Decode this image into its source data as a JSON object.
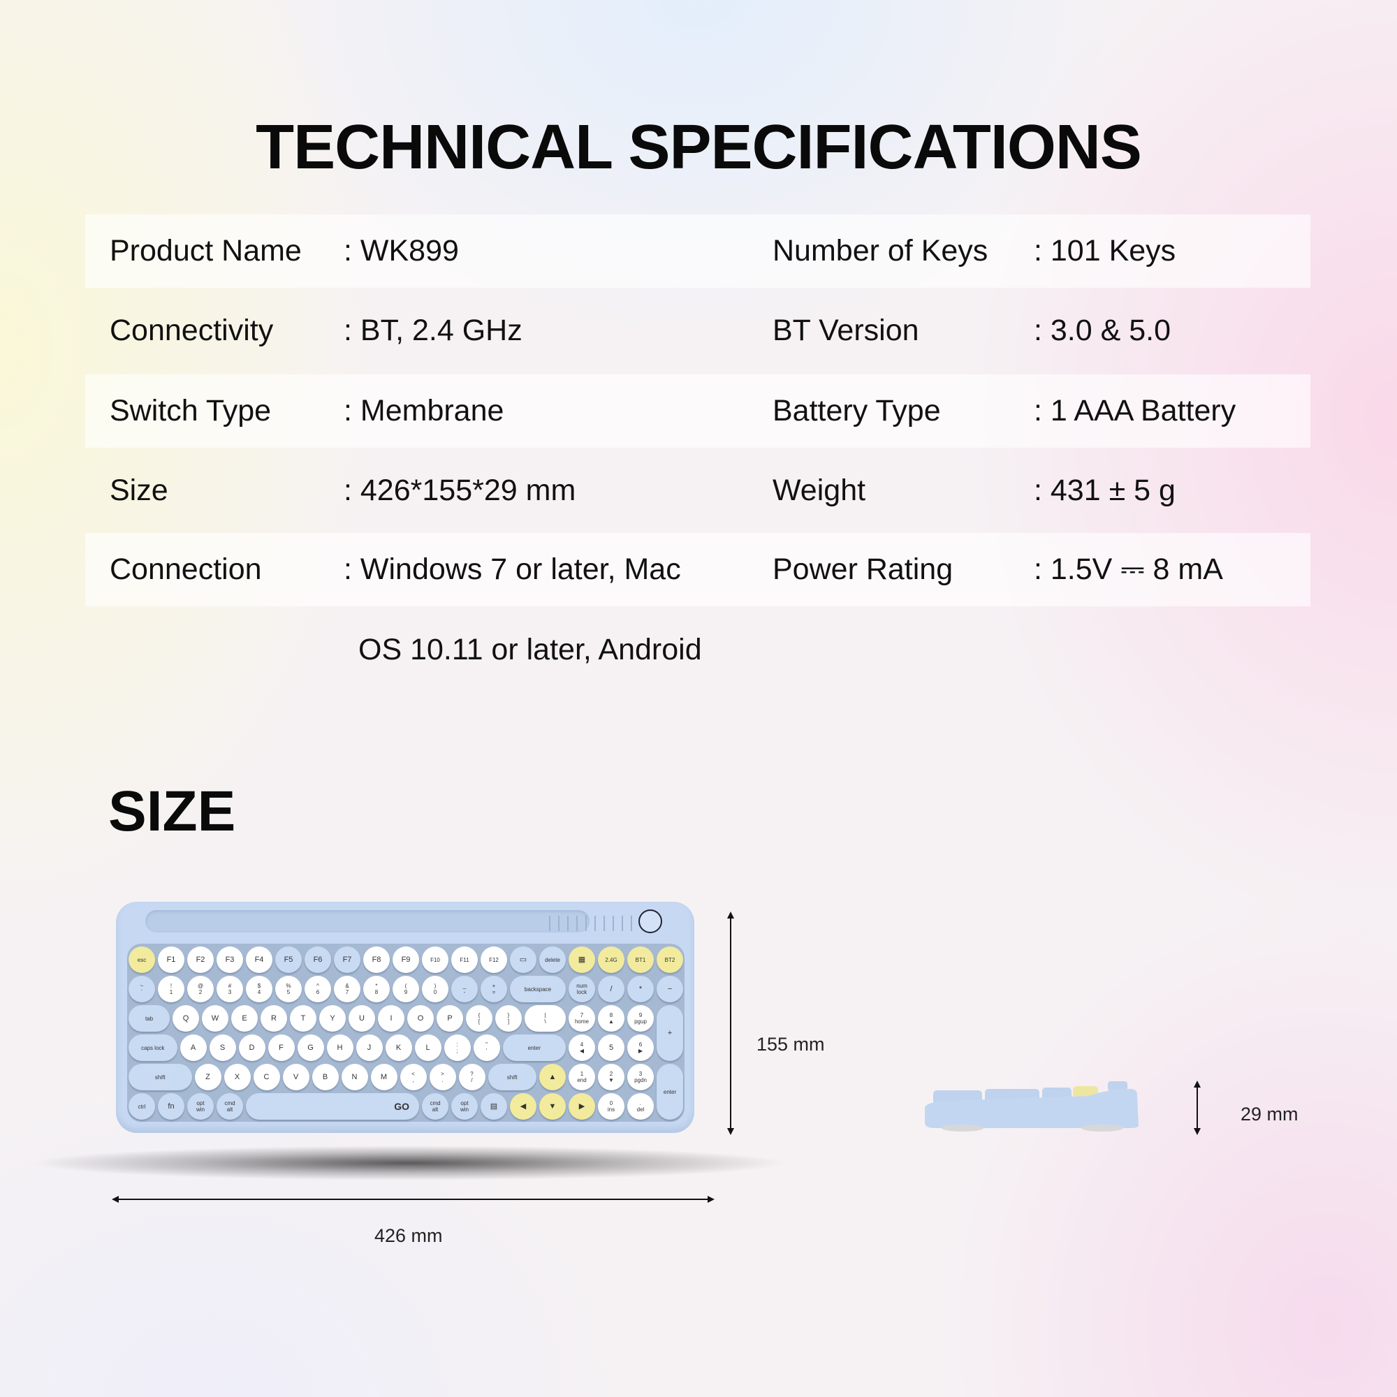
{
  "title": "TECHNICAL SPECIFICATIONS",
  "specs": [
    {
      "label1": "Product Name",
      "value1": ": WK899",
      "label2": "Number of Keys",
      "value2": ": 101 Keys"
    },
    {
      "label1": "Connectivity",
      "value1": ": BT, 2.4 GHz",
      "label2": "BT Version",
      "value2": ": 3.0 & 5.0"
    },
    {
      "label1": "Switch Type",
      "value1": ": Membrane",
      "label2": "Battery Type",
      "value2": ": 1 AAA Battery"
    },
    {
      "label1": "Size",
      "value1": ": 426*155*29 mm",
      "label2": "Weight",
      "value2": ": 431 ± 5 g"
    },
    {
      "label1": "Connection",
      "value1": ": Windows 7 or later, Mac",
      "label2": "Power Rating",
      "value2": ": 1.5V ⎓ 8 mA"
    }
  ],
  "connection_continued": "OS 10.11 or later, Android",
  "size_heading": "SIZE",
  "dimensions": {
    "width": "426 mm",
    "depth": "155 mm",
    "height": "29 mm"
  },
  "colors": {
    "key_yellow": "#f2eb9d",
    "key_blue": "#c9daf3",
    "key_white": "#ffffff",
    "body": "#c7d9f2"
  },
  "keyboard": {
    "rows": [
      [
        {
          "t": "esc",
          "c": "y"
        },
        {
          "t": "F1",
          "c": "w"
        },
        {
          "t": "F2",
          "c": "w"
        },
        {
          "t": "F3",
          "c": "w"
        },
        {
          "t": "F4",
          "c": "w"
        },
        {
          "t": "F5",
          "c": "b"
        },
        {
          "t": "F6",
          "c": "b"
        },
        {
          "t": "F7",
          "c": "b"
        },
        {
          "t": "F8",
          "c": "w"
        },
        {
          "t": "F9",
          "c": "w"
        },
        {
          "t": "F10",
          "c": "w"
        },
        {
          "t": "F11",
          "c": "w"
        },
        {
          "t": "F12",
          "c": "w"
        },
        {
          "t": "▭",
          "c": "b"
        },
        {
          "t": "delete",
          "c": "b"
        },
        {
          "t": "▦",
          "c": "y"
        },
        {
          "t": "2.4G",
          "c": "y"
        },
        {
          "t": "BT1",
          "c": "y"
        },
        {
          "t": "BT2",
          "c": "y"
        }
      ],
      [
        {
          "t": "~\n`",
          "c": "b"
        },
        {
          "t": "!\n1",
          "c": "w"
        },
        {
          "t": "@\n2",
          "c": "w"
        },
        {
          "t": "#\n3",
          "c": "w"
        },
        {
          "t": "$\n4",
          "c": "w"
        },
        {
          "t": "%\n5",
          "c": "w"
        },
        {
          "t": "^\n6",
          "c": "w"
        },
        {
          "t": "&\n7",
          "c": "w"
        },
        {
          "t": "*\n8",
          "c": "w"
        },
        {
          "t": "(\n9",
          "c": "w"
        },
        {
          "t": ")\n0",
          "c": "w"
        },
        {
          "t": "_\n-",
          "c": "b"
        },
        {
          "t": "+\n=",
          "c": "b"
        },
        {
          "t": "backspace",
          "c": "b"
        },
        {
          "t": "num\nlock",
          "c": "b"
        },
        {
          "t": "/",
          "c": "b"
        },
        {
          "t": "*",
          "c": "b"
        },
        {
          "t": "−",
          "c": "b"
        }
      ],
      [
        {
          "t": "tab",
          "c": "b"
        },
        {
          "t": "Q",
          "c": "w"
        },
        {
          "t": "W",
          "c": "w"
        },
        {
          "t": "E",
          "c": "w"
        },
        {
          "t": "R",
          "c": "w"
        },
        {
          "t": "T",
          "c": "w"
        },
        {
          "t": "Y",
          "c": "w"
        },
        {
          "t": "U",
          "c": "w"
        },
        {
          "t": "I",
          "c": "w"
        },
        {
          "t": "O",
          "c": "w"
        },
        {
          "t": "P",
          "c": "w"
        },
        {
          "t": "{\n[",
          "c": "w"
        },
        {
          "t": "}\n]",
          "c": "w"
        },
        {
          "t": "|\n\\",
          "c": "w"
        },
        {
          "t": "7\nhome",
          "c": "w"
        },
        {
          "t": "8\n▲",
          "c": "w"
        },
        {
          "t": "9\npgup",
          "c": "w"
        },
        {
          "t": "+",
          "c": "b"
        }
      ],
      [
        {
          "t": "caps lock",
          "c": "b"
        },
        {
          "t": "A",
          "c": "w"
        },
        {
          "t": "S",
          "c": "w"
        },
        {
          "t": "D",
          "c": "w"
        },
        {
          "t": "F",
          "c": "w"
        },
        {
          "t": "G",
          "c": "w"
        },
        {
          "t": "H",
          "c": "w"
        },
        {
          "t": "J",
          "c": "w"
        },
        {
          "t": "K",
          "c": "w"
        },
        {
          "t": "L",
          "c": "w"
        },
        {
          "t": ":\n;",
          "c": "w"
        },
        {
          "t": "\"\n'",
          "c": "w"
        },
        {
          "t": "enter",
          "c": "b"
        },
        {
          "t": "4\n◀",
          "c": "w"
        },
        {
          "t": "5",
          "c": "w"
        },
        {
          "t": "6\n▶",
          "c": "w"
        }
      ],
      [
        {
          "t": "shift",
          "c": "b"
        },
        {
          "t": "Z",
          "c": "w"
        },
        {
          "t": "X",
          "c": "w"
        },
        {
          "t": "C",
          "c": "w"
        },
        {
          "t": "V",
          "c": "w"
        },
        {
          "t": "B",
          "c": "w"
        },
        {
          "t": "N",
          "c": "w"
        },
        {
          "t": "M",
          "c": "w"
        },
        {
          "t": "<\n,",
          "c": "w"
        },
        {
          "t": ">\n.",
          "c": "w"
        },
        {
          "t": "?\n/",
          "c": "w"
        },
        {
          "t": "shift",
          "c": "b"
        },
        {
          "t": "▲",
          "c": "y"
        },
        {
          "t": "1\nend",
          "c": "w"
        },
        {
          "t": "2\n▼",
          "c": "w"
        },
        {
          "t": "3\npgdn",
          "c": "w"
        },
        {
          "t": "enter",
          "c": "b"
        }
      ],
      [
        {
          "t": "ctrl",
          "c": "b"
        },
        {
          "t": "fn",
          "c": "b"
        },
        {
          "t": "opt\nwin",
          "c": "b"
        },
        {
          "t": "cmd\nalt",
          "c": "b"
        },
        {
          "t": "GO",
          "c": "b"
        },
        {
          "t": "cmd\nalt",
          "c": "b"
        },
        {
          "t": "opt\nwin",
          "c": "b"
        },
        {
          "t": "▤",
          "c": "b"
        },
        {
          "t": "◀",
          "c": "y"
        },
        {
          "t": "▼",
          "c": "y"
        },
        {
          "t": "▶",
          "c": "y"
        },
        {
          "t": "0\nins",
          "c": "w"
        },
        {
          "t": ".\ndel",
          "c": "w"
        }
      ]
    ]
  }
}
